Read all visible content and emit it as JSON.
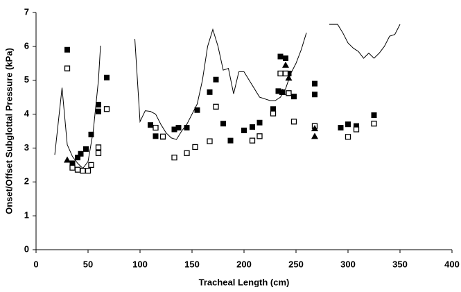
{
  "chart_data": {
    "type": "scatter",
    "xlabel": "Tracheal Length (cm)",
    "ylabel": "Onset/Offset Subglottal Pressure (kPa)",
    "xlim": [
      0,
      400
    ],
    "xticks": [
      0,
      50,
      100,
      150,
      200,
      250,
      300,
      350,
      400
    ],
    "ylim": [
      0,
      7
    ],
    "yticks": [
      0,
      1,
      2,
      3,
      4,
      5,
      6,
      7
    ],
    "series": [
      {
        "marker": "filled-square",
        "color": "#000000",
        "x": [
          30,
          35,
          40,
          43,
          48,
          53,
          60,
          60,
          68,
          110,
          115,
          122,
          133,
          137,
          145,
          155,
          167,
          173,
          180,
          187,
          200,
          208,
          215,
          228,
          233,
          235,
          237,
          240,
          243,
          248,
          268,
          268,
          293,
          300,
          308,
          325
        ],
        "values": [
          5.9,
          2.55,
          2.72,
          2.83,
          2.97,
          3.4,
          4.28,
          4.08,
          5.08,
          3.68,
          3.35,
          3.33,
          3.55,
          3.6,
          3.6,
          4.12,
          4.65,
          5.02,
          3.72,
          3.22,
          3.52,
          3.62,
          3.75,
          4.15,
          4.68,
          5.7,
          4.65,
          5.65,
          5.2,
          4.52,
          4.9,
          4.58,
          3.6,
          3.7,
          3.65,
          3.97
        ]
      },
      {
        "marker": "open-square",
        "color": "#000000",
        "x": [
          30,
          35,
          40,
          45,
          50,
          53,
          60,
          60,
          68,
          115,
          122,
          133,
          145,
          153,
          167,
          173,
          208,
          215,
          228,
          235,
          240,
          243,
          248,
          268,
          300,
          308,
          325
        ],
        "values": [
          5.35,
          2.42,
          2.36,
          2.33,
          2.33,
          2.5,
          3.02,
          2.85,
          4.15,
          3.6,
          3.34,
          2.72,
          2.85,
          3.03,
          3.2,
          4.22,
          3.22,
          3.35,
          4.02,
          5.2,
          5.2,
          4.62,
          3.78,
          3.65,
          3.33,
          3.55,
          3.72
        ]
      },
      {
        "marker": "triangle",
        "color": "#000000",
        "x": [
          30,
          237,
          240,
          243,
          268,
          268
        ],
        "values": [
          2.65,
          4.65,
          5.45,
          5.07,
          3.58,
          3.35
        ]
      },
      {
        "marker": "line",
        "color": "#000000",
        "x": [
          18,
          25,
          30,
          35,
          40,
          45,
          50,
          55,
          60,
          62,
          null,
          95,
          100,
          105,
          110,
          115,
          120,
          125,
          130,
          135,
          140,
          145,
          150,
          155,
          160,
          165,
          170,
          175,
          180,
          185,
          190,
          195,
          200,
          205,
          210,
          215,
          220,
          225,
          230,
          235,
          240,
          245,
          250,
          255,
          260,
          null,
          282,
          290,
          295,
          300,
          305,
          310,
          315,
          320,
          325,
          330,
          335,
          340,
          345,
          350
        ],
        "values": [
          2.8,
          4.78,
          3.1,
          2.75,
          2.55,
          2.4,
          2.6,
          3.5,
          5.0,
          6.02,
          null,
          6.22,
          3.78,
          4.1,
          4.08,
          4.0,
          3.7,
          3.45,
          3.3,
          3.25,
          3.5,
          3.7,
          4.0,
          4.3,
          5.0,
          6.0,
          6.5,
          6.0,
          5.3,
          5.35,
          4.6,
          5.25,
          5.25,
          5.0,
          4.75,
          4.5,
          4.45,
          4.4,
          4.4,
          4.5,
          4.75,
          5.2,
          5.5,
          5.9,
          6.4,
          null,
          6.65,
          6.65,
          6.4,
          6.1,
          5.95,
          5.85,
          5.65,
          5.8,
          5.65,
          5.8,
          6.0,
          6.3,
          6.35,
          6.65
        ]
      }
    ]
  }
}
